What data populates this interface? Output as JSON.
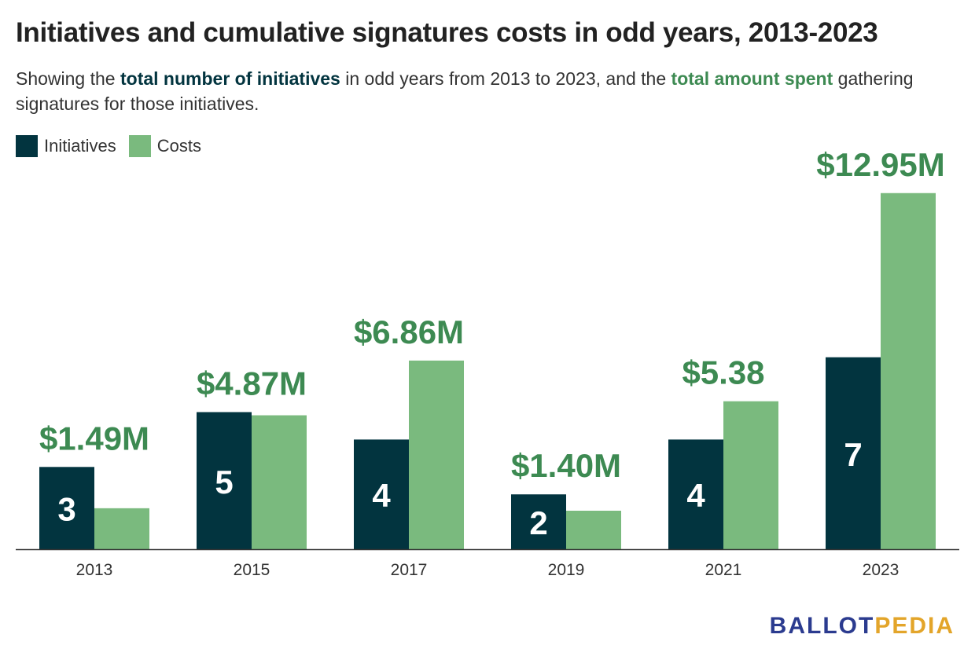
{
  "header": {
    "title": "Initiatives and cumulative signatures costs in odd years, 2013-2023",
    "subtitle_pre": "Showing the ",
    "subtitle_hl1": "total number of initiatives",
    "subtitle_mid": " in odd years from 2013 to 2023, and the ",
    "subtitle_hl2": "total amount spent",
    "subtitle_post": " gathering signatures for those initiatives."
  },
  "legend": {
    "initiatives_label": "Initiatives",
    "costs_label": "Costs"
  },
  "brand": {
    "part1": "BALLOT",
    "part2": "PEDIA"
  },
  "colors": {
    "initiatives": "#02343f",
    "costs": "#7aba7e",
    "cost_label": "#3d8a52",
    "axis": "#333333",
    "brand_blue": "#2b3b8f",
    "brand_gold": "#e3a52a"
  },
  "chart_data": {
    "type": "bar",
    "categories": [
      "2013",
      "2015",
      "2017",
      "2019",
      "2021",
      "2023"
    ],
    "series": [
      {
        "name": "Initiatives",
        "values": [
          3,
          5,
          4,
          2,
          4,
          7
        ],
        "labels": [
          "3",
          "5",
          "4",
          "2",
          "4",
          "7"
        ]
      },
      {
        "name": "Costs",
        "values": [
          1.49,
          4.87,
          6.86,
          1.4,
          5.38,
          12.95
        ],
        "labels": [
          "$1.49M",
          "$4.87M",
          "$6.86M",
          "$1.40M",
          "$5.38",
          "$12.95M"
        ]
      }
    ],
    "legend_position": "top-left",
    "grid": false
  }
}
